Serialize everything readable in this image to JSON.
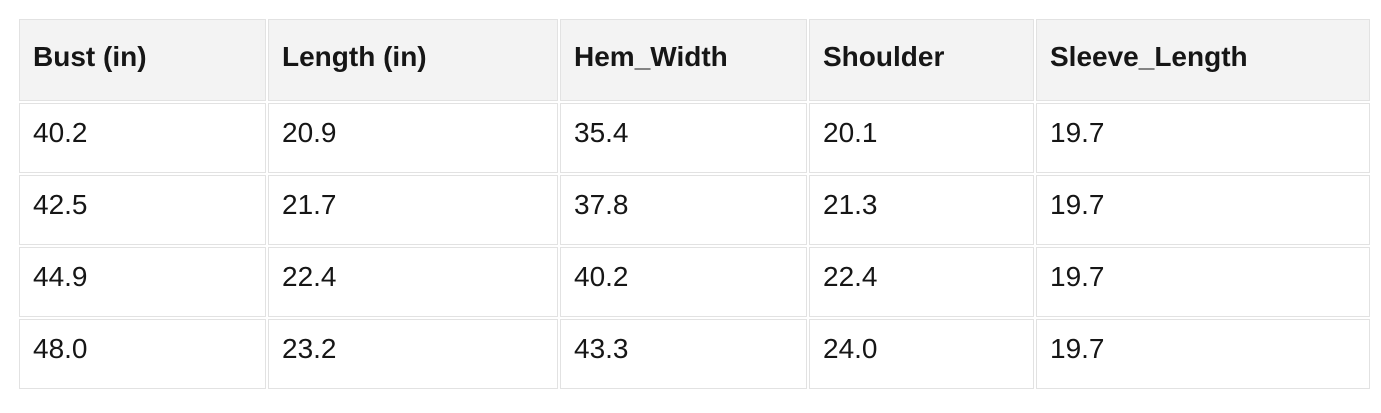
{
  "table": {
    "columns": [
      "Bust (in)",
      "Length (in)",
      "Hem_Width",
      "Shoulder",
      "Sleeve_Length"
    ],
    "rows": [
      [
        "40.2",
        "20.9",
        "35.4",
        "20.1",
        "19.7"
      ],
      [
        "42.5",
        "21.7",
        "37.8",
        "21.3",
        "19.7"
      ],
      [
        "44.9",
        "22.4",
        "40.2",
        "22.4",
        "19.7"
      ],
      [
        "48.0",
        "23.2",
        "43.3",
        "24.0",
        "19.7"
      ]
    ]
  },
  "chart_data": {
    "type": "table",
    "title": "",
    "columns": [
      "Bust (in)",
      "Length (in)",
      "Hem_Width",
      "Shoulder",
      "Sleeve_Length"
    ],
    "rows": [
      [
        40.2,
        20.9,
        35.4,
        20.1,
        19.7
      ],
      [
        42.5,
        21.7,
        37.8,
        21.3,
        19.7
      ],
      [
        44.9,
        22.4,
        40.2,
        22.4,
        19.7
      ],
      [
        48.0,
        23.2,
        43.3,
        24.0,
        19.7
      ]
    ],
    "layout": {
      "header_position": "top",
      "grid": true
    }
  },
  "colors": {
    "header_bg": "#f3f3f3",
    "row_bg": "#ffffff",
    "border": "#e2e2e2",
    "text": "#161616",
    "page_bg": "#ffffff"
  }
}
